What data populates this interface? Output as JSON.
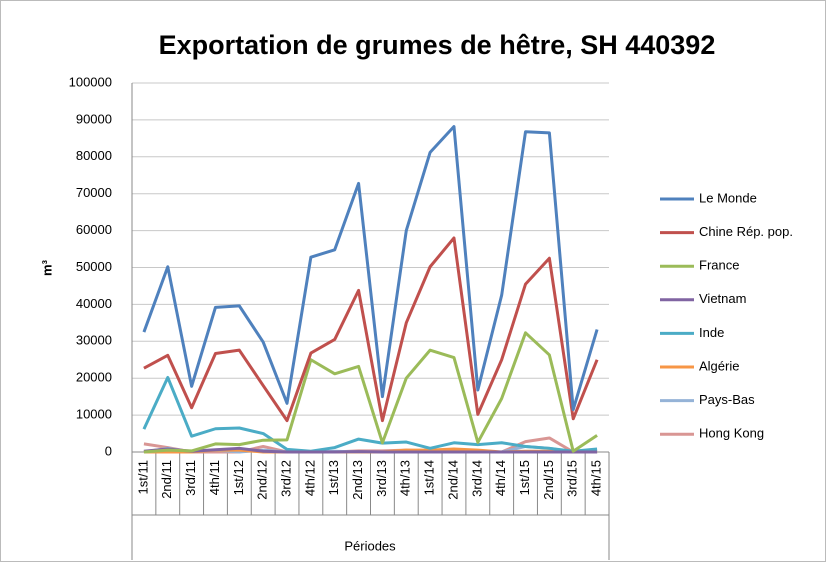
{
  "chart_data": {
    "type": "line",
    "title": "Exportation de grumes de hêtre, SH 440392",
    "x_label": "Périodes",
    "y_label": "m³",
    "categories": [
      "1st/11",
      "2nd/11",
      "3rd/11",
      "4th/11",
      "1st/12",
      "2nd/12",
      "3rd/12",
      "4th/12",
      "1st/13",
      "2nd/13",
      "3rd/13",
      "4th/13",
      "1st/14",
      "2nd/14",
      "3rd/14",
      "4th/14",
      "1st/15",
      "2nd/15",
      "3rd/15",
      "4th/15"
    ],
    "series": [
      {
        "name": "Le Monde",
        "color": "#4F81BD",
        "values": [
          32500,
          50200,
          17800,
          39200,
          39600,
          29800,
          13200,
          52800,
          54800,
          72800,
          15000,
          60000,
          81200,
          88200,
          16800,
          42500,
          86800,
          86500,
          11500,
          33200
        ]
      },
      {
        "name": "Chine Rép. pop.",
        "color": "#C0504D",
        "values": [
          22700,
          26200,
          12000,
          26700,
          27600,
          18000,
          8500,
          26800,
          30500,
          43800,
          8500,
          35000,
          50200,
          58000,
          10200,
          25000,
          45500,
          52500,
          9000,
          25000
        ]
      },
      {
        "name": "France",
        "color": "#9BBB59",
        "values": [
          0,
          500,
          300,
          2200,
          2000,
          3200,
          3300,
          25000,
          21200,
          23200,
          2500,
          20000,
          27600,
          25600,
          2600,
          14500,
          32300,
          26300,
          200,
          4500
        ]
      },
      {
        "name": "Vietnam",
        "color": "#8064A2",
        "values": [
          200,
          800,
          200,
          600,
          1000,
          200,
          0,
          0,
          0,
          100,
          0,
          0,
          0,
          0,
          0,
          0,
          0,
          0,
          0,
          0
        ]
      },
      {
        "name": "Inde",
        "color": "#4BACC6",
        "values": [
          6200,
          20200,
          4300,
          6300,
          6500,
          5000,
          700,
          200,
          1200,
          3500,
          2400,
          2700,
          1000,
          2500,
          2000,
          2500,
          1500,
          1000,
          200,
          800
        ]
      },
      {
        "name": "Algérie",
        "color": "#F79646",
        "values": [
          0,
          0,
          0,
          500,
          500,
          0,
          0,
          0,
          0,
          0,
          0,
          500,
          500,
          800,
          500,
          0,
          200,
          200,
          0,
          0
        ]
      },
      {
        "name": "Pays-Bas",
        "color": "#95B3D7",
        "values": [
          0,
          1000,
          0,
          500,
          0,
          500,
          0,
          0,
          200,
          0,
          0,
          0,
          0,
          300,
          0,
          0,
          1500,
          1000,
          0,
          0
        ]
      },
      {
        "name": "Hong Kong",
        "color": "#D99694",
        "values": [
          2200,
          1200,
          0,
          0,
          0,
          1500,
          0,
          0,
          0,
          300,
          300,
          500,
          200,
          200,
          0,
          0,
          2800,
          3800,
          0,
          0
        ]
      }
    ],
    "ylim": [
      0,
      100000
    ],
    "yticks": [
      0,
      10000,
      20000,
      30000,
      40000,
      50000,
      60000,
      70000,
      80000,
      90000,
      100000
    ],
    "grid": true,
    "legend": "right"
  }
}
